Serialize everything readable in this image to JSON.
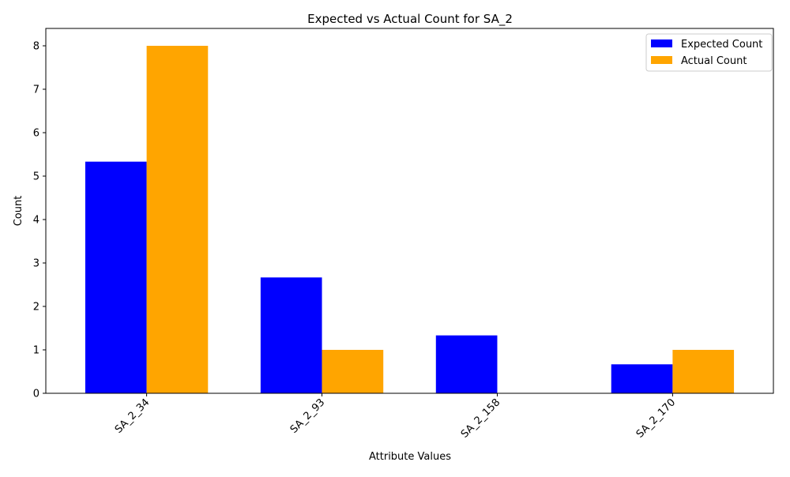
{
  "chart_data": {
    "type": "bar",
    "title": "Expected vs Actual Count for SA_2",
    "xlabel": "Attribute Values",
    "ylabel": "Count",
    "categories": [
      "SA_2_34",
      "SA_2_93",
      "SA_2_158",
      "SA_2_170"
    ],
    "series": [
      {
        "name": "Expected Count",
        "color": "#0000ff",
        "values": [
          5.333,
          2.667,
          1.333,
          0.667
        ]
      },
      {
        "name": "Actual Count",
        "color": "#ffa500",
        "values": [
          8,
          1,
          0,
          1
        ]
      }
    ],
    "ylim": [
      0,
      8.4
    ],
    "yticks": [
      0,
      1,
      2,
      3,
      4,
      5,
      6,
      7,
      8
    ],
    "grid": false,
    "legend_position": "top-right"
  }
}
